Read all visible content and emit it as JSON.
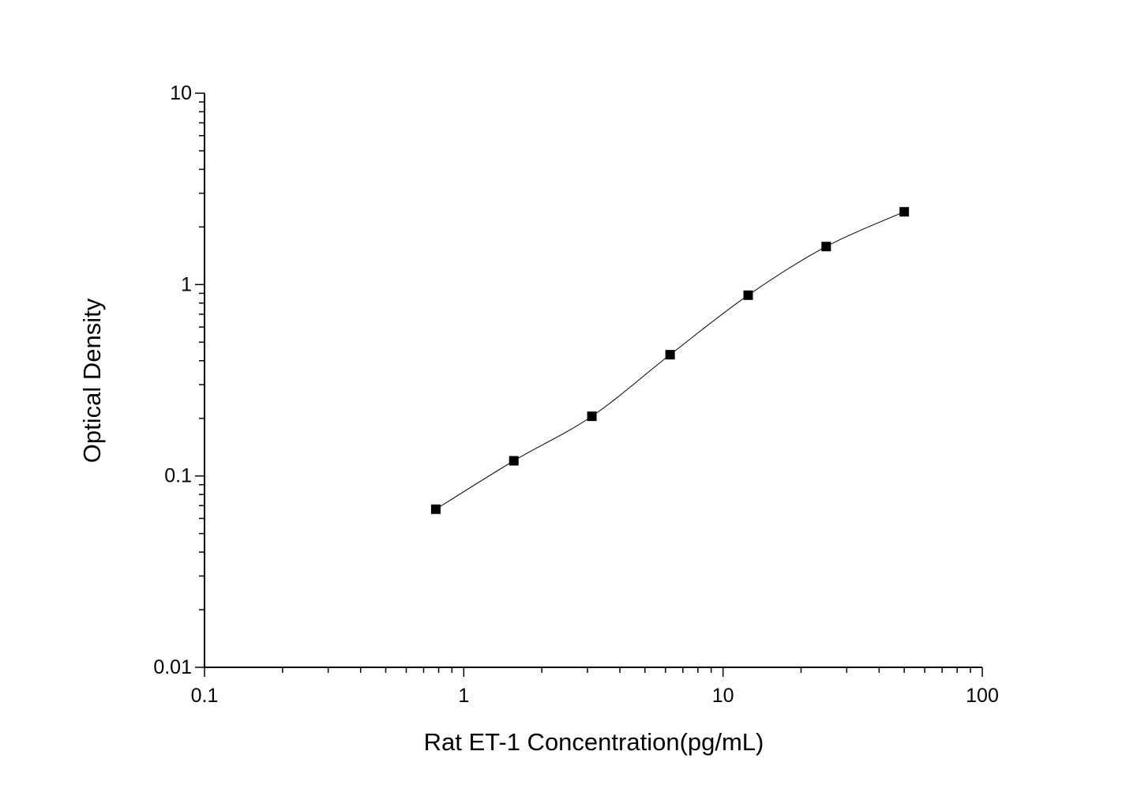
{
  "chart_data": {
    "type": "scatter",
    "title": "",
    "xlabel": "Rat ET-1 Concentration(pg/mL)",
    "ylabel": "Optical Density",
    "xscale": "log",
    "yscale": "log",
    "xlim": [
      0.1,
      100
    ],
    "ylim": [
      0.01,
      10
    ],
    "xticks": [
      "0.1",
      "1",
      "10",
      "100"
    ],
    "yticks": [
      "0.01",
      "0.1",
      "1",
      "10"
    ],
    "grid": false,
    "legend": "none",
    "marker": "filled-square",
    "fit_line": "smooth curve through points",
    "x": [
      0.78,
      1.56,
      3.12,
      6.25,
      12.5,
      25,
      50
    ],
    "y": [
      0.067,
      0.12,
      0.205,
      0.43,
      0.88,
      1.58,
      2.4
    ]
  }
}
